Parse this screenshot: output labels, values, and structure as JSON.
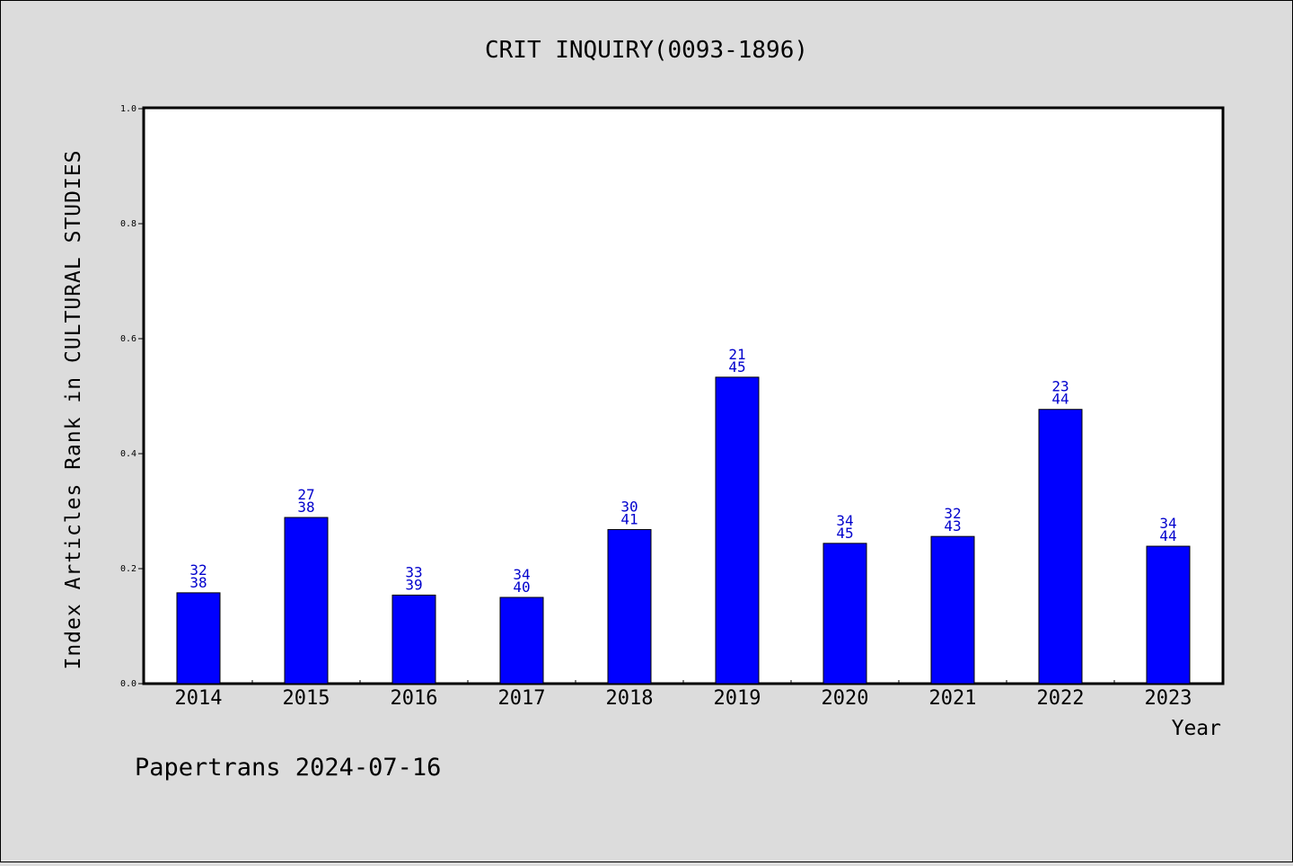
{
  "chart_data": {
    "type": "bar",
    "title": "CRIT INQUIRY(0093-1896)",
    "xlabel": "Year",
    "ylabel": "Index Articles Rank in CULTURAL STUDIES",
    "ylim": [
      0,
      1.0
    ],
    "yticks": [
      "0.0",
      "0.2",
      "0.4",
      "0.6",
      "0.8",
      "1.0"
    ],
    "categories": [
      "2014",
      "2015",
      "2016",
      "2017",
      "2018",
      "2019",
      "2020",
      "2021",
      "2022",
      "2023"
    ],
    "values": [
      0.158,
      0.289,
      0.154,
      0.15,
      0.268,
      0.533,
      0.244,
      0.256,
      0.477,
      0.239
    ],
    "labels_top": [
      "32",
      "27",
      "33",
      "34",
      "30",
      "21",
      "34",
      "32",
      "23",
      "34"
    ],
    "labels_bottom": [
      "38",
      "38",
      "39",
      "40",
      "41",
      "45",
      "45",
      "43",
      "44",
      "44"
    ],
    "bar_color": "#0000ff",
    "label_color": "#0000cc",
    "grid": false,
    "legend": "none"
  },
  "footer": "Papertrans 2024-07-16"
}
